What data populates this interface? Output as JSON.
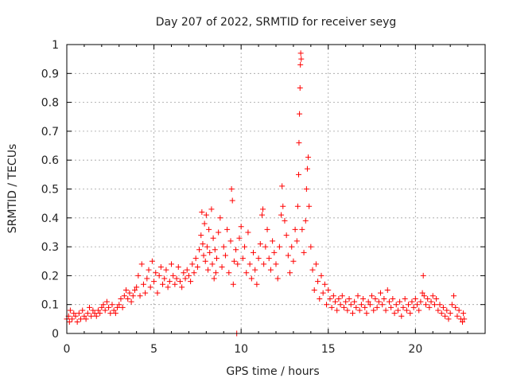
{
  "chart_data": {
    "type": "scatter",
    "title": "Day 207 of 2022, SRMTID for receiver seyg",
    "xlabel": "GPS time / hours",
    "ylabel": "SRMTID / TECUs",
    "xlim": [
      0,
      24
    ],
    "ylim": [
      0,
      1
    ],
    "xticks": [
      "0",
      "5",
      "10",
      "15",
      "20"
    ],
    "yticks": [
      "0",
      "0.1",
      "0.2",
      "0.3",
      "0.4",
      "0.5",
      "0.6",
      "0.7",
      "0.8",
      "0.9",
      "1"
    ],
    "grid": true,
    "marker": "+",
    "color": "#ff0000",
    "series": [
      {
        "name": "SRMTID",
        "points": [
          [
            0.0,
            0.05
          ],
          [
            0.1,
            0.06
          ],
          [
            0.15,
            0.04
          ],
          [
            0.2,
            0.08
          ],
          [
            0.3,
            0.05
          ],
          [
            0.4,
            0.07
          ],
          [
            0.5,
            0.06
          ],
          [
            0.6,
            0.04
          ],
          [
            0.7,
            0.07
          ],
          [
            0.8,
            0.05
          ],
          [
            0.9,
            0.08
          ],
          [
            1.0,
            0.06
          ],
          [
            1.1,
            0.05
          ],
          [
            1.2,
            0.07
          ],
          [
            1.3,
            0.09
          ],
          [
            1.4,
            0.06
          ],
          [
            1.5,
            0.08
          ],
          [
            1.6,
            0.07
          ],
          [
            1.7,
            0.06
          ],
          [
            1.8,
            0.08
          ],
          [
            1.9,
            0.07
          ],
          [
            2.0,
            0.09
          ],
          [
            2.1,
            0.1
          ],
          [
            2.2,
            0.08
          ],
          [
            2.3,
            0.11
          ],
          [
            2.4,
            0.09
          ],
          [
            2.5,
            0.07
          ],
          [
            2.6,
            0.1
          ],
          [
            2.7,
            0.08
          ],
          [
            2.8,
            0.07
          ],
          [
            2.9,
            0.09
          ],
          [
            3.0,
            0.1
          ],
          [
            3.1,
            0.12
          ],
          [
            3.2,
            0.09
          ],
          [
            3.3,
            0.13
          ],
          [
            3.4,
            0.15
          ],
          [
            3.5,
            0.12
          ],
          [
            3.6,
            0.14
          ],
          [
            3.7,
            0.11
          ],
          [
            3.8,
            0.13
          ],
          [
            3.9,
            0.15
          ],
          [
            4.0,
            0.16
          ],
          [
            4.1,
            0.2
          ],
          [
            4.2,
            0.13
          ],
          [
            4.3,
            0.24
          ],
          [
            4.4,
            0.17
          ],
          [
            4.5,
            0.14
          ],
          [
            4.6,
            0.19
          ],
          [
            4.7,
            0.22
          ],
          [
            4.8,
            0.16
          ],
          [
            4.9,
            0.25
          ],
          [
            5.0,
            0.18
          ],
          [
            5.1,
            0.21
          ],
          [
            5.2,
            0.14
          ],
          [
            5.3,
            0.2
          ],
          [
            5.4,
            0.23
          ],
          [
            5.5,
            0.17
          ],
          [
            5.6,
            0.19
          ],
          [
            5.7,
            0.22
          ],
          [
            5.8,
            0.16
          ],
          [
            5.9,
            0.18
          ],
          [
            6.0,
            0.24
          ],
          [
            6.1,
            0.2
          ],
          [
            6.2,
            0.17
          ],
          [
            6.3,
            0.19
          ],
          [
            6.4,
            0.23
          ],
          [
            6.5,
            0.18
          ],
          [
            6.6,
            0.16
          ],
          [
            6.7,
            0.21
          ],
          [
            6.8,
            0.19
          ],
          [
            6.9,
            0.22
          ],
          [
            7.0,
            0.2
          ],
          [
            7.1,
            0.18
          ],
          [
            7.2,
            0.24
          ],
          [
            7.3,
            0.21
          ],
          [
            7.4,
            0.26
          ],
          [
            7.5,
            0.23
          ],
          [
            7.6,
            0.29
          ],
          [
            7.7,
            0.34
          ],
          [
            7.75,
            0.42
          ],
          [
            7.8,
            0.31
          ],
          [
            7.85,
            0.27
          ],
          [
            7.9,
            0.38
          ],
          [
            7.95,
            0.25
          ],
          [
            8.0,
            0.41
          ],
          [
            8.05,
            0.3
          ],
          [
            8.1,
            0.22
          ],
          [
            8.15,
            0.36
          ],
          [
            8.2,
            0.28
          ],
          [
            8.3,
            0.43
          ],
          [
            8.35,
            0.24
          ],
          [
            8.4,
            0.33
          ],
          [
            8.45,
            0.19
          ],
          [
            8.5,
            0.29
          ],
          [
            8.55,
            0.21
          ],
          [
            8.6,
            0.26
          ],
          [
            8.7,
            0.35
          ],
          [
            8.8,
            0.4
          ],
          [
            8.9,
            0.23
          ],
          [
            9.0,
            0.3
          ],
          [
            9.1,
            0.27
          ],
          [
            9.2,
            0.36
          ],
          [
            9.3,
            0.21
          ],
          [
            9.4,
            0.32
          ],
          [
            9.45,
            0.5
          ],
          [
            9.5,
            0.46
          ],
          [
            9.55,
            0.17
          ],
          [
            9.6,
            0.25
          ],
          [
            9.7,
            0.29
          ],
          [
            9.75,
            0.0
          ],
          [
            9.8,
            0.24
          ],
          [
            9.9,
            0.33
          ],
          [
            10.0,
            0.37
          ],
          [
            10.1,
            0.26
          ],
          [
            10.2,
            0.3
          ],
          [
            10.3,
            0.21
          ],
          [
            10.4,
            0.35
          ],
          [
            10.5,
            0.24
          ],
          [
            10.6,
            0.19
          ],
          [
            10.7,
            0.28
          ],
          [
            10.8,
            0.22
          ],
          [
            10.9,
            0.17
          ],
          [
            11.0,
            0.26
          ],
          [
            11.1,
            0.31
          ],
          [
            11.2,
            0.41
          ],
          [
            11.25,
            0.43
          ],
          [
            11.3,
            0.24
          ],
          [
            11.4,
            0.3
          ],
          [
            11.5,
            0.36
          ],
          [
            11.6,
            0.26
          ],
          [
            11.7,
            0.22
          ],
          [
            11.8,
            0.32
          ],
          [
            11.9,
            0.28
          ],
          [
            12.0,
            0.24
          ],
          [
            12.1,
            0.19
          ],
          [
            12.2,
            0.3
          ],
          [
            12.3,
            0.41
          ],
          [
            12.35,
            0.51
          ],
          [
            12.4,
            0.44
          ],
          [
            12.5,
            0.39
          ],
          [
            12.6,
            0.34
          ],
          [
            12.7,
            0.27
          ],
          [
            12.8,
            0.21
          ],
          [
            12.9,
            0.3
          ],
          [
            13.0,
            0.25
          ],
          [
            13.1,
            0.36
          ],
          [
            13.2,
            0.32
          ],
          [
            13.25,
            0.44
          ],
          [
            13.3,
            0.55
          ],
          [
            13.32,
            0.66
          ],
          [
            13.35,
            0.76
          ],
          [
            13.38,
            0.85
          ],
          [
            13.4,
            0.93
          ],
          [
            13.42,
            0.97
          ],
          [
            13.45,
            0.95
          ],
          [
            13.5,
            0.36
          ],
          [
            13.6,
            0.28
          ],
          [
            13.7,
            0.39
          ],
          [
            13.75,
            0.5
          ],
          [
            13.8,
            0.57
          ],
          [
            13.85,
            0.61
          ],
          [
            13.9,
            0.44
          ],
          [
            14.0,
            0.3
          ],
          [
            14.1,
            0.22
          ],
          [
            14.2,
            0.15
          ],
          [
            14.3,
            0.24
          ],
          [
            14.4,
            0.18
          ],
          [
            14.5,
            0.12
          ],
          [
            14.6,
            0.2
          ],
          [
            14.7,
            0.14
          ],
          [
            14.8,
            0.17
          ],
          [
            14.9,
            0.1
          ],
          [
            15.0,
            0.15
          ],
          [
            15.1,
            0.12
          ],
          [
            15.2,
            0.09
          ],
          [
            15.3,
            0.13
          ],
          [
            15.4,
            0.11
          ],
          [
            15.5,
            0.08
          ],
          [
            15.6,
            0.12
          ],
          [
            15.7,
            0.1
          ],
          [
            15.8,
            0.13
          ],
          [
            15.9,
            0.09
          ],
          [
            16.0,
            0.11
          ],
          [
            16.1,
            0.08
          ],
          [
            16.2,
            0.12
          ],
          [
            16.3,
            0.1
          ],
          [
            16.4,
            0.07
          ],
          [
            16.5,
            0.11
          ],
          [
            16.6,
            0.09
          ],
          [
            16.7,
            0.13
          ],
          [
            16.8,
            0.08
          ],
          [
            16.9,
            0.1
          ],
          [
            17.0,
            0.12
          ],
          [
            17.1,
            0.09
          ],
          [
            17.2,
            0.07
          ],
          [
            17.3,
            0.11
          ],
          [
            17.4,
            0.1
          ],
          [
            17.5,
            0.13
          ],
          [
            17.6,
            0.08
          ],
          [
            17.7,
            0.12
          ],
          [
            17.8,
            0.09
          ],
          [
            17.9,
            0.11
          ],
          [
            18.0,
            0.14
          ],
          [
            18.1,
            0.1
          ],
          [
            18.2,
            0.12
          ],
          [
            18.3,
            0.08
          ],
          [
            18.4,
            0.15
          ],
          [
            18.5,
            0.11
          ],
          [
            18.6,
            0.09
          ],
          [
            18.7,
            0.12
          ],
          [
            18.8,
            0.07
          ],
          [
            18.9,
            0.1
          ],
          [
            19.0,
            0.08
          ],
          [
            19.1,
            0.11
          ],
          [
            19.2,
            0.06
          ],
          [
            19.3,
            0.09
          ],
          [
            19.4,
            0.12
          ],
          [
            19.5,
            0.08
          ],
          [
            19.6,
            0.1
          ],
          [
            19.7,
            0.07
          ],
          [
            19.8,
            0.11
          ],
          [
            19.9,
            0.09
          ],
          [
            20.0,
            0.12
          ],
          [
            20.1,
            0.1
          ],
          [
            20.2,
            0.08
          ],
          [
            20.3,
            0.11
          ],
          [
            20.4,
            0.14
          ],
          [
            20.45,
            0.2
          ],
          [
            20.5,
            0.13
          ],
          [
            20.6,
            0.1
          ],
          [
            20.7,
            0.12
          ],
          [
            20.8,
            0.09
          ],
          [
            20.9,
            0.11
          ],
          [
            21.0,
            0.13
          ],
          [
            21.1,
            0.1
          ],
          [
            21.2,
            0.12
          ],
          [
            21.3,
            0.08
          ],
          [
            21.4,
            0.1
          ],
          [
            21.5,
            0.07
          ],
          [
            21.6,
            0.09
          ],
          [
            21.7,
            0.06
          ],
          [
            21.8,
            0.08
          ],
          [
            21.9,
            0.05
          ],
          [
            22.0,
            0.07
          ],
          [
            22.1,
            0.1
          ],
          [
            22.2,
            0.13
          ],
          [
            22.3,
            0.09
          ],
          [
            22.4,
            0.06
          ],
          [
            22.5,
            0.08
          ],
          [
            22.6,
            0.05
          ],
          [
            22.7,
            0.04
          ],
          [
            22.75,
            0.07
          ],
          [
            22.8,
            0.05
          ]
        ]
      }
    ]
  }
}
